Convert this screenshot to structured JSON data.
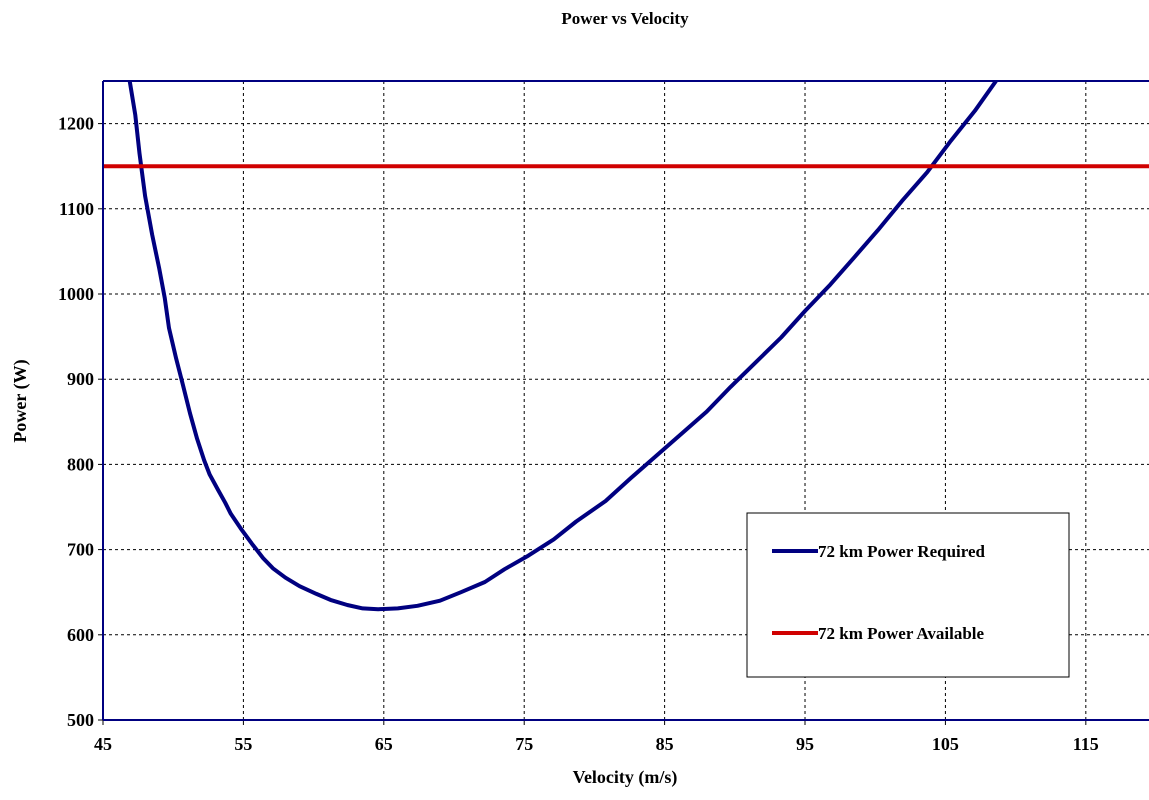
{
  "chart_data": {
    "type": "line",
    "title": "Power vs Velocity",
    "xlabel": "Velocity (m/s)",
    "ylabel": "Power (W)",
    "xlim": [
      45,
      119.5
    ],
    "ylim": [
      500,
      1250
    ],
    "x_ticks": [
      45,
      55,
      65,
      75,
      85,
      95,
      105,
      115
    ],
    "y_ticks": [
      500,
      600,
      700,
      800,
      900,
      1000,
      1100,
      1200
    ],
    "grid": true,
    "legend_position": "bottom-right",
    "series": [
      {
        "name": "72 km Power Required",
        "color": "#000080",
        "points": [
          [
            46.9,
            1250
          ],
          [
            47.3,
            1210
          ],
          [
            47.6,
            1165
          ],
          [
            48.0,
            1115
          ],
          [
            48.5,
            1070
          ],
          [
            49.0,
            1030
          ],
          [
            49.4,
            995
          ],
          [
            49.7,
            960
          ],
          [
            50.2,
            925
          ],
          [
            50.7,
            893
          ],
          [
            51.2,
            860
          ],
          [
            51.7,
            830
          ],
          [
            52.2,
            805
          ],
          [
            52.6,
            788
          ],
          [
            53.2,
            770
          ],
          [
            53.7,
            755
          ],
          [
            54.1,
            742
          ],
          [
            54.8,
            725
          ],
          [
            55.6,
            707
          ],
          [
            56.4,
            690
          ],
          [
            57.1,
            678
          ],
          [
            58.0,
            667
          ],
          [
            59.0,
            657
          ],
          [
            60.2,
            648
          ],
          [
            61.2,
            641
          ],
          [
            62.4,
            635
          ],
          [
            63.5,
            631
          ],
          [
            64.6,
            630
          ],
          [
            66.0,
            631
          ],
          [
            67.4,
            634
          ],
          [
            69.0,
            640
          ],
          [
            70.5,
            650
          ],
          [
            72.2,
            662
          ],
          [
            73.6,
            677
          ],
          [
            75.3,
            693
          ],
          [
            77.1,
            712
          ],
          [
            78.7,
            733
          ],
          [
            80.8,
            757
          ],
          [
            82.6,
            784
          ],
          [
            84.4,
            810
          ],
          [
            86.2,
            836
          ],
          [
            88.0,
            862
          ],
          [
            89.7,
            891
          ],
          [
            91.5,
            920
          ],
          [
            93.3,
            949
          ],
          [
            95.0,
            980
          ],
          [
            96.8,
            1011
          ],
          [
            98.5,
            1043
          ],
          [
            100.2,
            1075
          ],
          [
            101.9,
            1109
          ],
          [
            103.7,
            1143
          ],
          [
            105.4,
            1180
          ],
          [
            107.1,
            1215
          ],
          [
            108.6,
            1250
          ]
        ]
      },
      {
        "name": "72 km Power Available",
        "color": "#d00000",
        "points": [
          [
            45,
            1150
          ],
          [
            119.5,
            1150
          ]
        ]
      }
    ]
  }
}
